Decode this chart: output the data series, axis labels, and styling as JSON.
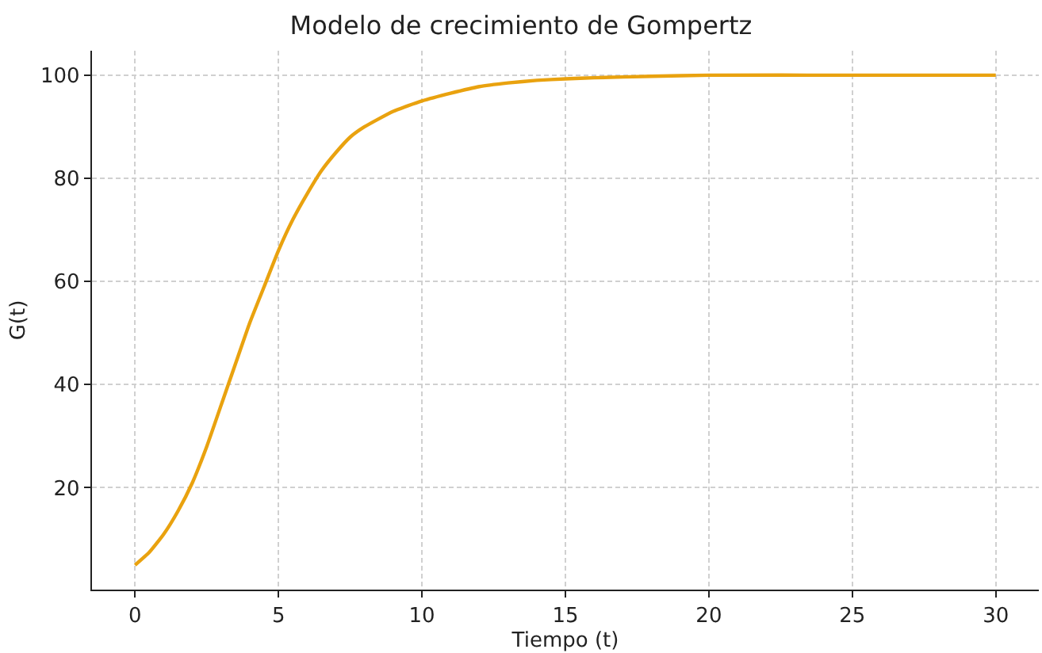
{
  "chart_data": {
    "type": "line",
    "title": "Modelo de crecimiento de Gompertz",
    "xlabel": "Tiempo (t)",
    "ylabel": "G(t)",
    "x": [
      0,
      0.5,
      1,
      1.5,
      2,
      2.5,
      3,
      3.5,
      4,
      4.5,
      5,
      5.5,
      6,
      6.5,
      7,
      7.5,
      8,
      9,
      10,
      11,
      12,
      13,
      14,
      15,
      16,
      18,
      20,
      25,
      30
    ],
    "series": [
      {
        "color": "#e9a20f",
        "values": [
          5,
          7.5,
          11,
          15.5,
          21,
          28,
          36,
          44,
          52,
          59,
          66,
          72,
          77,
          81.5,
          85,
          88,
          90,
          93,
          95,
          96.5,
          97.8,
          98.5,
          99,
          99.3,
          99.5,
          99.8,
          100,
          100,
          100
        ]
      }
    ],
    "xlim": [
      -1.5,
      31.5
    ],
    "ylim": [
      0.25,
      104.75
    ],
    "xticks": [
      0,
      5,
      10,
      15,
      20,
      25,
      30
    ],
    "yticks": [
      20,
      40,
      60,
      80,
      100
    ],
    "grid": true,
    "marker": "none",
    "line_style": "solid"
  }
}
